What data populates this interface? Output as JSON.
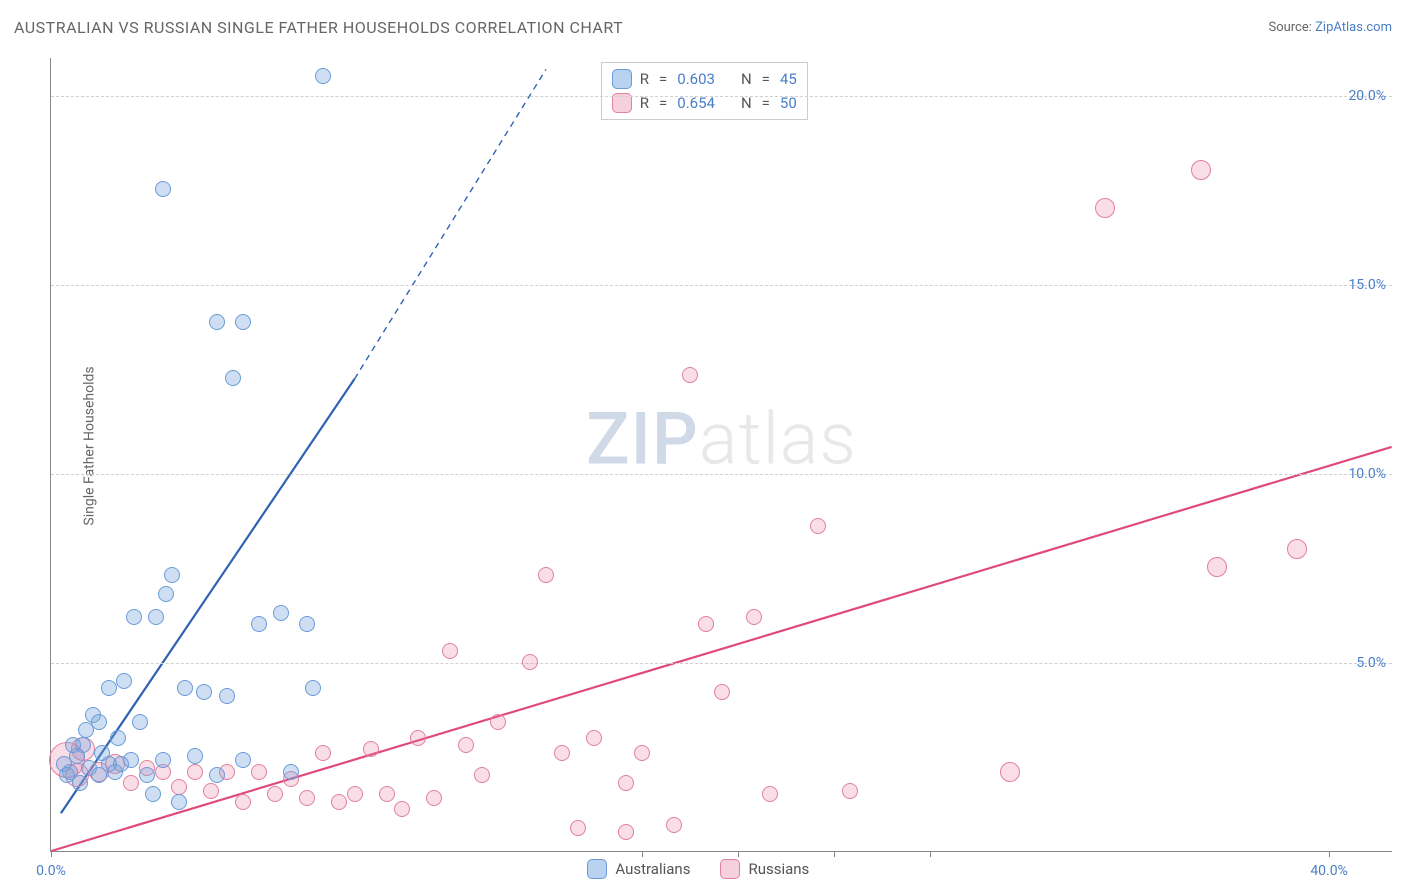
{
  "title": "AUSTRALIAN VS RUSSIAN SINGLE FATHER HOUSEHOLDS CORRELATION CHART",
  "source_label": "Source: ",
  "source_link": "ZipAtlas.com",
  "watermark_a": "ZIP",
  "watermark_b": "atlas",
  "chart": {
    "type": "scatter",
    "background_color": "#ffffff",
    "grid_color": "#d0d0d0",
    "axis_color": "#888888",
    "tick_label_color": "#4a7ec7",
    "ylabel": "Single Father Households",
    "ylabel_fontsize": 14,
    "xlim": [
      0,
      42
    ],
    "ylim": [
      0,
      21
    ],
    "yticks": [
      5,
      10,
      15,
      20
    ],
    "ytick_labels": [
      "5.0%",
      "10.0%",
      "15.0%",
      "20.0%"
    ],
    "xticks": [
      0,
      18.5,
      21.5,
      24.5,
      27.5,
      40
    ],
    "xtick_labels_visible": {
      "0": "0.0%",
      "40": "40.0%"
    },
    "legend_stats": [
      {
        "r_label": "R",
        "r_value": "0.603",
        "n_label": "N",
        "n_value": "45",
        "series": "a"
      },
      {
        "r_label": "R",
        "r_value": "0.654",
        "n_label": "N",
        "n_value": "50",
        "series": "b"
      }
    ],
    "series_legend": [
      {
        "label": "Australians",
        "series": "a"
      },
      {
        "label": "Russians",
        "series": "b"
      }
    ],
    "series": {
      "a": {
        "name": "Australians",
        "fill": "rgba(118,164,221,0.35)",
        "stroke": "#6a9bd8",
        "swatch_fill": "#b9d2ef",
        "swatch_stroke": "#6a9bd8",
        "marker_radius": 8,
        "marker_stroke_width": 1.2,
        "trend": {
          "x1": 0.3,
          "y1": 1.0,
          "x2": 9.5,
          "y2": 12.5,
          "dash_from_x": 9.5,
          "dash_to_x": 15.5,
          "dash_to_y": 20.7,
          "color": "#2e62b3",
          "width": 2.2
        }
      },
      "b": {
        "name": "Russians",
        "fill": "rgba(232,120,158,0.25)",
        "stroke": "#e2809f",
        "swatch_fill": "#f6d0dc",
        "swatch_stroke": "#e2809f",
        "marker_radius": 9,
        "marker_stroke_width": 1.2,
        "trend": {
          "x1": 0,
          "y1": 0,
          "x2": 42,
          "y2": 10.7,
          "color": "#e04a7a",
          "width": 2.2
        }
      }
    },
    "points_a": [
      [
        8.5,
        20.5
      ],
      [
        3.5,
        17.5
      ],
      [
        5.2,
        14.0
      ],
      [
        6.0,
        14.0
      ],
      [
        5.7,
        12.5
      ],
      [
        0.4,
        2.3
      ],
      [
        0.6,
        2.1
      ],
      [
        0.8,
        2.5
      ],
      [
        0.9,
        1.8
      ],
      [
        1.0,
        2.8
      ],
      [
        1.2,
        2.2
      ],
      [
        1.3,
        3.6
      ],
      [
        1.5,
        2.0
      ],
      [
        1.5,
        3.4
      ],
      [
        1.8,
        2.3
      ],
      [
        1.8,
        4.3
      ],
      [
        2.0,
        2.1
      ],
      [
        2.1,
        3.0
      ],
      [
        2.3,
        4.5
      ],
      [
        2.5,
        2.4
      ],
      [
        2.6,
        6.2
      ],
      [
        2.8,
        3.4
      ],
      [
        3.0,
        2.0
      ],
      [
        3.2,
        1.5
      ],
      [
        3.3,
        6.2
      ],
      [
        3.5,
        2.4
      ],
      [
        3.6,
        6.8
      ],
      [
        3.8,
        7.3
      ],
      [
        4.0,
        1.3
      ],
      [
        4.2,
        4.3
      ],
      [
        4.5,
        2.5
      ],
      [
        4.8,
        4.2
      ],
      [
        5.2,
        2.0
      ],
      [
        5.5,
        4.1
      ],
      [
        6.0,
        2.4
      ],
      [
        6.5,
        6.0
      ],
      [
        7.2,
        6.3
      ],
      [
        7.5,
        2.1
      ],
      [
        8.0,
        6.0
      ],
      [
        8.2,
        4.3
      ],
      [
        0.7,
        2.8
      ],
      [
        1.1,
        3.2
      ],
      [
        1.6,
        2.6
      ],
      [
        2.2,
        2.3
      ],
      [
        0.5,
        2.0
      ]
    ],
    "points_b": [
      [
        0.5,
        2.4,
        18
      ],
      [
        0.8,
        2.0,
        12
      ],
      [
        1.0,
        2.7,
        12
      ],
      [
        1.5,
        2.1,
        10
      ],
      [
        2.0,
        2.3,
        10
      ],
      [
        2.5,
        1.8,
        8
      ],
      [
        3.0,
        2.2,
        8
      ],
      [
        3.5,
        2.1,
        8
      ],
      [
        4.0,
        1.7,
        8
      ],
      [
        4.5,
        2.1,
        8
      ],
      [
        5.0,
        1.6,
        8
      ],
      [
        5.5,
        2.1,
        8
      ],
      [
        6.0,
        1.3,
        8
      ],
      [
        6.5,
        2.1,
        8
      ],
      [
        7.0,
        1.5,
        8
      ],
      [
        7.5,
        1.9,
        8
      ],
      [
        8.0,
        1.4,
        8
      ],
      [
        8.5,
        2.6,
        8
      ],
      [
        9.0,
        1.3,
        8
      ],
      [
        9.5,
        1.5,
        8
      ],
      [
        10.0,
        2.7,
        8
      ],
      [
        10.5,
        1.5,
        8
      ],
      [
        11.0,
        1.1,
        8
      ],
      [
        11.5,
        3.0,
        8
      ],
      [
        12.0,
        1.4,
        8
      ],
      [
        12.5,
        5.3,
        8
      ],
      [
        13.0,
        2.8,
        8
      ],
      [
        13.5,
        2.0,
        8
      ],
      [
        14.0,
        3.4,
        8
      ],
      [
        15.0,
        5.0,
        8
      ],
      [
        15.5,
        7.3,
        8
      ],
      [
        16.0,
        2.6,
        8
      ],
      [
        16.5,
        0.6,
        8
      ],
      [
        17.0,
        3.0,
        8
      ],
      [
        18.0,
        0.5,
        8
      ],
      [
        18.0,
        1.8,
        8
      ],
      [
        18.5,
        2.6,
        8
      ],
      [
        20.0,
        12.6,
        8
      ],
      [
        19.5,
        0.7,
        8
      ],
      [
        20.5,
        6.0,
        8
      ],
      [
        21.0,
        4.2,
        8
      ],
      [
        22.0,
        6.2,
        8
      ],
      [
        22.5,
        1.5,
        8
      ],
      [
        24.0,
        8.6,
        8
      ],
      [
        25.0,
        1.6,
        8
      ],
      [
        30.0,
        2.1,
        10
      ],
      [
        33.0,
        17.0,
        10
      ],
      [
        36.0,
        18.0,
        10
      ],
      [
        36.5,
        7.5,
        10
      ],
      [
        39.0,
        8.0,
        10
      ]
    ]
  }
}
